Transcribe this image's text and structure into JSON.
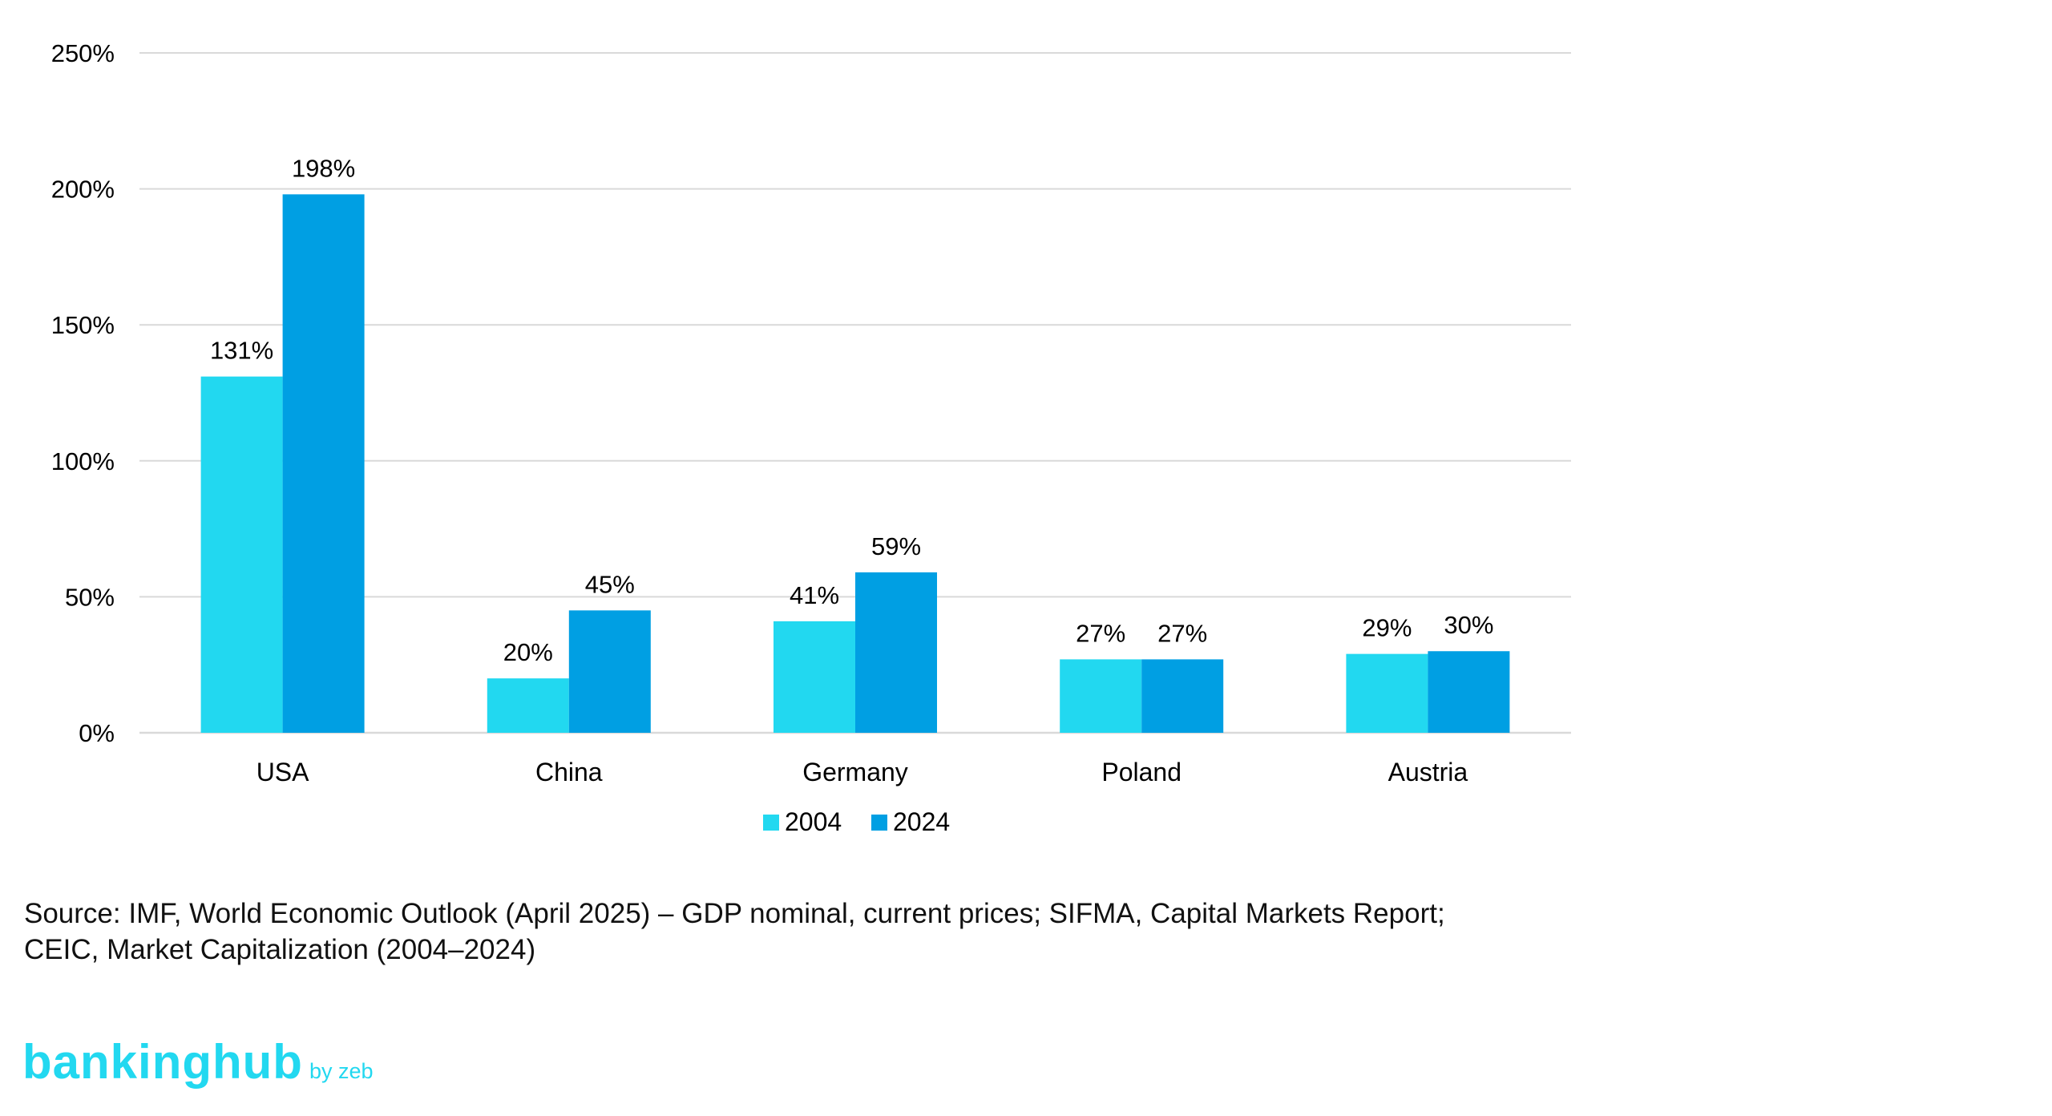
{
  "chart_data": {
    "type": "bar",
    "categories": [
      "USA",
      "China",
      "Germany",
      "Poland",
      "Austria"
    ],
    "series": [
      {
        "name": "2004",
        "values": [
          131,
          20,
          41,
          27,
          29
        ],
        "labels": [
          "131%",
          "20%",
          "41%",
          "27%",
          "29%"
        ],
        "color": "#22D8F0"
      },
      {
        "name": "2024",
        "values": [
          198,
          45,
          59,
          27,
          30
        ],
        "labels": [
          "198%",
          "45%",
          "59%",
          "27%",
          "30%"
        ],
        "color": "#009FE3"
      }
    ],
    "y_ticks": [
      "0%",
      "50%",
      "100%",
      "150%",
      "200%",
      "250%"
    ],
    "ylim": [
      0,
      250
    ],
    "grid": true,
    "legend_position": "bottom-center"
  },
  "source_lines": [
    "Source: IMF, World Economic Outlook (April 2025) – GDP nominal, current prices; SIFMA, Capital Markets Report;",
    "CEIC, Market Capitalization (2004–2024)"
  ],
  "logo": {
    "main": "bankinghub",
    "sub": "by zeb",
    "color": "#22D8F0"
  },
  "colors": {
    "grid": "#D9D9D9",
    "axis": "#D9D9D9"
  }
}
